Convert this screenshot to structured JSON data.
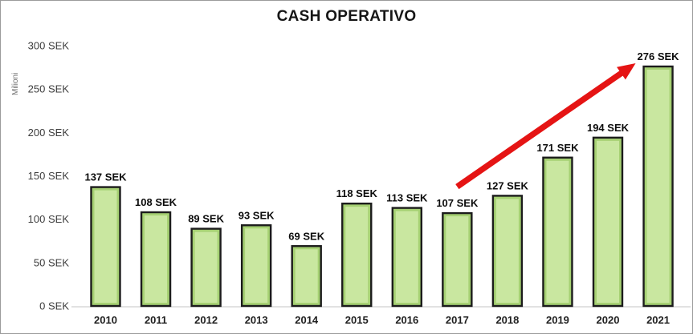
{
  "chart_data": {
    "type": "bar",
    "title": "CASH OPERATIVO",
    "y_axis_unit_label": "Milioni",
    "value_suffix": " SEK",
    "categories": [
      "2010",
      "2011",
      "2012",
      "2013",
      "2014",
      "2015",
      "2016",
      "2017",
      "2018",
      "2019",
      "2020",
      "2021"
    ],
    "values": [
      137,
      108,
      89,
      93,
      69,
      118,
      113,
      107,
      127,
      171,
      194,
      276
    ],
    "y_ticks": [
      0,
      50,
      100,
      150,
      200,
      250,
      300
    ],
    "ylim": [
      0,
      300
    ],
    "grid": false,
    "legend": "none",
    "bar_labels": true,
    "annotation": {
      "shape": "trend-arrow",
      "from_category": "2017",
      "to_category": "2021"
    }
  },
  "colors": {
    "bar_inner_fill": "#c9e7a0",
    "bar_edge_band": "#a6d173",
    "bar_border": "#1c1c1c",
    "baseline": "#d8d8d8",
    "arrow": "#e51414"
  }
}
